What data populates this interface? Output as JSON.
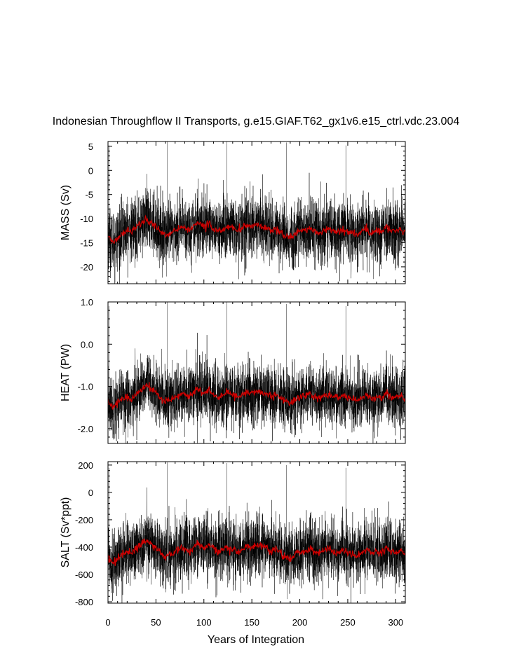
{
  "chart_data": {
    "type": "line",
    "title": "Indonesian Throughflow II Transports, g.e15.GIAF.T62_gx1v6.e15_ctrl.vdc.23.004",
    "xlabel": "Years of Integration",
    "xlim": [
      0,
      310
    ],
    "xticks": [
      0,
      50,
      100,
      150,
      200,
      250,
      300
    ],
    "series_colors": {
      "raw": "#000000",
      "smoothed": "#cc0000"
    },
    "panels": [
      {
        "id": "mass",
        "ylabel": "MASS (Sv)",
        "ylim": [
          -23.5,
          6
        ],
        "yticks": [
          5,
          0,
          -5,
          -10,
          -15,
          -20
        ],
        "ytick_labels": [
          "5",
          "0",
          "-5",
          "-10",
          "-15",
          "-20"
        ],
        "raw_mean": -12.5,
        "raw_std": 3.2,
        "smoothed": [
          {
            "x": 0,
            "y": -13.5
          },
          {
            "x": 5,
            "y": -15.0
          },
          {
            "x": 10,
            "y": -14.2
          },
          {
            "x": 15,
            "y": -13.0
          },
          {
            "x": 20,
            "y": -12.4
          },
          {
            "x": 25,
            "y": -12.8
          },
          {
            "x": 30,
            "y": -11.6
          },
          {
            "x": 35,
            "y": -11.0
          },
          {
            "x": 40,
            "y": -10.2
          },
          {
            "x": 45,
            "y": -10.8
          },
          {
            "x": 50,
            "y": -11.6
          },
          {
            "x": 55,
            "y": -12.8
          },
          {
            "x": 60,
            "y": -13.4
          },
          {
            "x": 65,
            "y": -13.0
          },
          {
            "x": 70,
            "y": -12.6
          },
          {
            "x": 75,
            "y": -12.0
          },
          {
            "x": 80,
            "y": -11.8
          },
          {
            "x": 85,
            "y": -12.4
          },
          {
            "x": 90,
            "y": -11.4
          },
          {
            "x": 95,
            "y": -11.0
          },
          {
            "x": 100,
            "y": -11.6
          },
          {
            "x": 105,
            "y": -11.2
          },
          {
            "x": 110,
            "y": -12.0
          },
          {
            "x": 115,
            "y": -12.8
          },
          {
            "x": 120,
            "y": -12.2
          },
          {
            "x": 125,
            "y": -11.6
          },
          {
            "x": 130,
            "y": -12.0
          },
          {
            "x": 135,
            "y": -12.6
          },
          {
            "x": 140,
            "y": -12.0
          },
          {
            "x": 145,
            "y": -11.4
          },
          {
            "x": 150,
            "y": -11.8
          },
          {
            "x": 155,
            "y": -11.2
          },
          {
            "x": 160,
            "y": -11.6
          },
          {
            "x": 165,
            "y": -11.8
          },
          {
            "x": 170,
            "y": -12.4
          },
          {
            "x": 175,
            "y": -12.0
          },
          {
            "x": 180,
            "y": -12.8
          },
          {
            "x": 185,
            "y": -13.6
          },
          {
            "x": 190,
            "y": -14.0
          },
          {
            "x": 195,
            "y": -13.2
          },
          {
            "x": 200,
            "y": -12.6
          },
          {
            "x": 205,
            "y": -12.4
          },
          {
            "x": 210,
            "y": -12.0
          },
          {
            "x": 215,
            "y": -12.6
          },
          {
            "x": 220,
            "y": -13.0
          },
          {
            "x": 225,
            "y": -12.4
          },
          {
            "x": 230,
            "y": -12.0
          },
          {
            "x": 235,
            "y": -12.6
          },
          {
            "x": 240,
            "y": -12.8
          },
          {
            "x": 245,
            "y": -12.2
          },
          {
            "x": 250,
            "y": -12.6
          },
          {
            "x": 255,
            "y": -13.0
          },
          {
            "x": 260,
            "y": -13.4
          },
          {
            "x": 265,
            "y": -12.6
          },
          {
            "x": 270,
            "y": -12.2
          },
          {
            "x": 275,
            "y": -13.0
          },
          {
            "x": 280,
            "y": -12.4
          },
          {
            "x": 285,
            "y": -12.8
          },
          {
            "x": 290,
            "y": -11.8
          },
          {
            "x": 295,
            "y": -12.4
          },
          {
            "x": 300,
            "y": -12.8
          },
          {
            "x": 305,
            "y": -12.2
          },
          {
            "x": 310,
            "y": -13.2
          }
        ],
        "spikes": [
          {
            "x": 1,
            "y": 5.2
          },
          {
            "x": 62,
            "y": 6.2
          },
          {
            "x": 124,
            "y": 6.0
          },
          {
            "x": 186,
            "y": 5.8
          },
          {
            "x": 248,
            "y": 5.2
          },
          {
            "x": 61,
            "y": -22.0
          }
        ]
      },
      {
        "id": "heat",
        "ylabel": "HEAT (PW)",
        "ylim": [
          -2.35,
          1.0
        ],
        "yticks": [
          1.0,
          0.0,
          -1.0,
          -2.0
        ],
        "ytick_labels": [
          "1.0",
          "0.0",
          "-1.0",
          "-2.0"
        ],
        "raw_mean": -1.25,
        "raw_std": 0.36,
        "smoothed": [
          {
            "x": 0,
            "y": -1.35
          },
          {
            "x": 5,
            "y": -1.5
          },
          {
            "x": 10,
            "y": -1.4
          },
          {
            "x": 15,
            "y": -1.3
          },
          {
            "x": 20,
            "y": -1.25
          },
          {
            "x": 25,
            "y": -1.28
          },
          {
            "x": 30,
            "y": -1.15
          },
          {
            "x": 35,
            "y": -1.1
          },
          {
            "x": 40,
            "y": -0.98
          },
          {
            "x": 45,
            "y": -1.05
          },
          {
            "x": 50,
            "y": -1.15
          },
          {
            "x": 55,
            "y": -1.28
          },
          {
            "x": 60,
            "y": -1.34
          },
          {
            "x": 65,
            "y": -1.3
          },
          {
            "x": 70,
            "y": -1.25
          },
          {
            "x": 75,
            "y": -1.2
          },
          {
            "x": 80,
            "y": -1.18
          },
          {
            "x": 85,
            "y": -1.24
          },
          {
            "x": 90,
            "y": -1.12
          },
          {
            "x": 95,
            "y": -1.08
          },
          {
            "x": 100,
            "y": -1.15
          },
          {
            "x": 105,
            "y": -1.1
          },
          {
            "x": 110,
            "y": -1.2
          },
          {
            "x": 115,
            "y": -1.28
          },
          {
            "x": 120,
            "y": -1.22
          },
          {
            "x": 125,
            "y": -1.14
          },
          {
            "x": 130,
            "y": -1.2
          },
          {
            "x": 135,
            "y": -1.26
          },
          {
            "x": 140,
            "y": -1.2
          },
          {
            "x": 145,
            "y": -1.12
          },
          {
            "x": 150,
            "y": -1.18
          },
          {
            "x": 155,
            "y": -1.1
          },
          {
            "x": 160,
            "y": -1.15
          },
          {
            "x": 165,
            "y": -1.18
          },
          {
            "x": 170,
            "y": -1.24
          },
          {
            "x": 175,
            "y": -1.2
          },
          {
            "x": 180,
            "y": -1.28
          },
          {
            "x": 185,
            "y": -1.36
          },
          {
            "x": 190,
            "y": -1.4
          },
          {
            "x": 195,
            "y": -1.32
          },
          {
            "x": 200,
            "y": -1.26
          },
          {
            "x": 205,
            "y": -1.22
          },
          {
            "x": 210,
            "y": -1.18
          },
          {
            "x": 215,
            "y": -1.26
          },
          {
            "x": 220,
            "y": -1.3
          },
          {
            "x": 225,
            "y": -1.22
          },
          {
            "x": 230,
            "y": -1.18
          },
          {
            "x": 235,
            "y": -1.25
          },
          {
            "x": 240,
            "y": -1.28
          },
          {
            "x": 245,
            "y": -1.2
          },
          {
            "x": 250,
            "y": -1.25
          },
          {
            "x": 255,
            "y": -1.3
          },
          {
            "x": 260,
            "y": -1.34
          },
          {
            "x": 265,
            "y": -1.26
          },
          {
            "x": 270,
            "y": -1.2
          },
          {
            "x": 275,
            "y": -1.3
          },
          {
            "x": 280,
            "y": -1.22
          },
          {
            "x": 285,
            "y": -1.28
          },
          {
            "x": 290,
            "y": -1.16
          },
          {
            "x": 295,
            "y": -1.24
          },
          {
            "x": 300,
            "y": -1.28
          },
          {
            "x": 305,
            "y": -1.2
          },
          {
            "x": 310,
            "y": -1.32
          }
        ],
        "spikes": [
          {
            "x": 1,
            "y": 0.9
          },
          {
            "x": 62,
            "y": 1.0
          },
          {
            "x": 124,
            "y": 1.0
          },
          {
            "x": 186,
            "y": 0.95
          },
          {
            "x": 248,
            "y": 0.9
          }
        ]
      },
      {
        "id": "salt",
        "ylabel": "SALT (Sv*ppt)",
        "ylim": [
          -810,
          225
        ],
        "yticks": [
          200,
          0,
          -200,
          -400,
          -600,
          -800
        ],
        "ytick_labels": [
          "200",
          "0",
          "-200",
          "-400",
          "-600",
          "-800"
        ],
        "raw_mean": -440,
        "raw_std": 112,
        "smoothed": [
          {
            "x": 0,
            "y": -470
          },
          {
            "x": 5,
            "y": -520
          },
          {
            "x": 10,
            "y": -490
          },
          {
            "x": 15,
            "y": -450
          },
          {
            "x": 20,
            "y": -430
          },
          {
            "x": 25,
            "y": -445
          },
          {
            "x": 30,
            "y": -400
          },
          {
            "x": 35,
            "y": -380
          },
          {
            "x": 40,
            "y": -350
          },
          {
            "x": 45,
            "y": -370
          },
          {
            "x": 50,
            "y": -400
          },
          {
            "x": 55,
            "y": -445
          },
          {
            "x": 60,
            "y": -465
          },
          {
            "x": 65,
            "y": -450
          },
          {
            "x": 70,
            "y": -435
          },
          {
            "x": 75,
            "y": -415
          },
          {
            "x": 80,
            "y": -410
          },
          {
            "x": 85,
            "y": -430
          },
          {
            "x": 90,
            "y": -395
          },
          {
            "x": 95,
            "y": -380
          },
          {
            "x": 100,
            "y": -400
          },
          {
            "x": 105,
            "y": -385
          },
          {
            "x": 110,
            "y": -415
          },
          {
            "x": 115,
            "y": -445
          },
          {
            "x": 120,
            "y": -420
          },
          {
            "x": 125,
            "y": -400
          },
          {
            "x": 130,
            "y": -415
          },
          {
            "x": 135,
            "y": -435
          },
          {
            "x": 140,
            "y": -415
          },
          {
            "x": 145,
            "y": -390
          },
          {
            "x": 150,
            "y": -405
          },
          {
            "x": 155,
            "y": -385
          },
          {
            "x": 160,
            "y": -400
          },
          {
            "x": 165,
            "y": -405
          },
          {
            "x": 170,
            "y": -430
          },
          {
            "x": 175,
            "y": -415
          },
          {
            "x": 180,
            "y": -445
          },
          {
            "x": 185,
            "y": -470
          },
          {
            "x": 190,
            "y": -485
          },
          {
            "x": 195,
            "y": -455
          },
          {
            "x": 200,
            "y": -435
          },
          {
            "x": 205,
            "y": -425
          },
          {
            "x": 210,
            "y": -410
          },
          {
            "x": 215,
            "y": -435
          },
          {
            "x": 220,
            "y": -450
          },
          {
            "x": 225,
            "y": -425
          },
          {
            "x": 230,
            "y": -410
          },
          {
            "x": 235,
            "y": -435
          },
          {
            "x": 240,
            "y": -445
          },
          {
            "x": 245,
            "y": -420
          },
          {
            "x": 250,
            "y": -435
          },
          {
            "x": 255,
            "y": -450
          },
          {
            "x": 260,
            "y": -465
          },
          {
            "x": 265,
            "y": -435
          },
          {
            "x": 270,
            "y": -415
          },
          {
            "x": 275,
            "y": -450
          },
          {
            "x": 280,
            "y": -425
          },
          {
            "x": 285,
            "y": -445
          },
          {
            "x": 290,
            "y": -405
          },
          {
            "x": 295,
            "y": -430
          },
          {
            "x": 300,
            "y": -445
          },
          {
            "x": 305,
            "y": -420
          },
          {
            "x": 310,
            "y": -460
          }
        ],
        "spikes": [
          {
            "x": 1,
            "y": 180
          },
          {
            "x": 62,
            "y": 220
          },
          {
            "x": 124,
            "y": 215
          },
          {
            "x": 186,
            "y": 200
          },
          {
            "x": 248,
            "y": 180
          },
          {
            "x": 187,
            "y": -780
          }
        ]
      }
    ]
  }
}
